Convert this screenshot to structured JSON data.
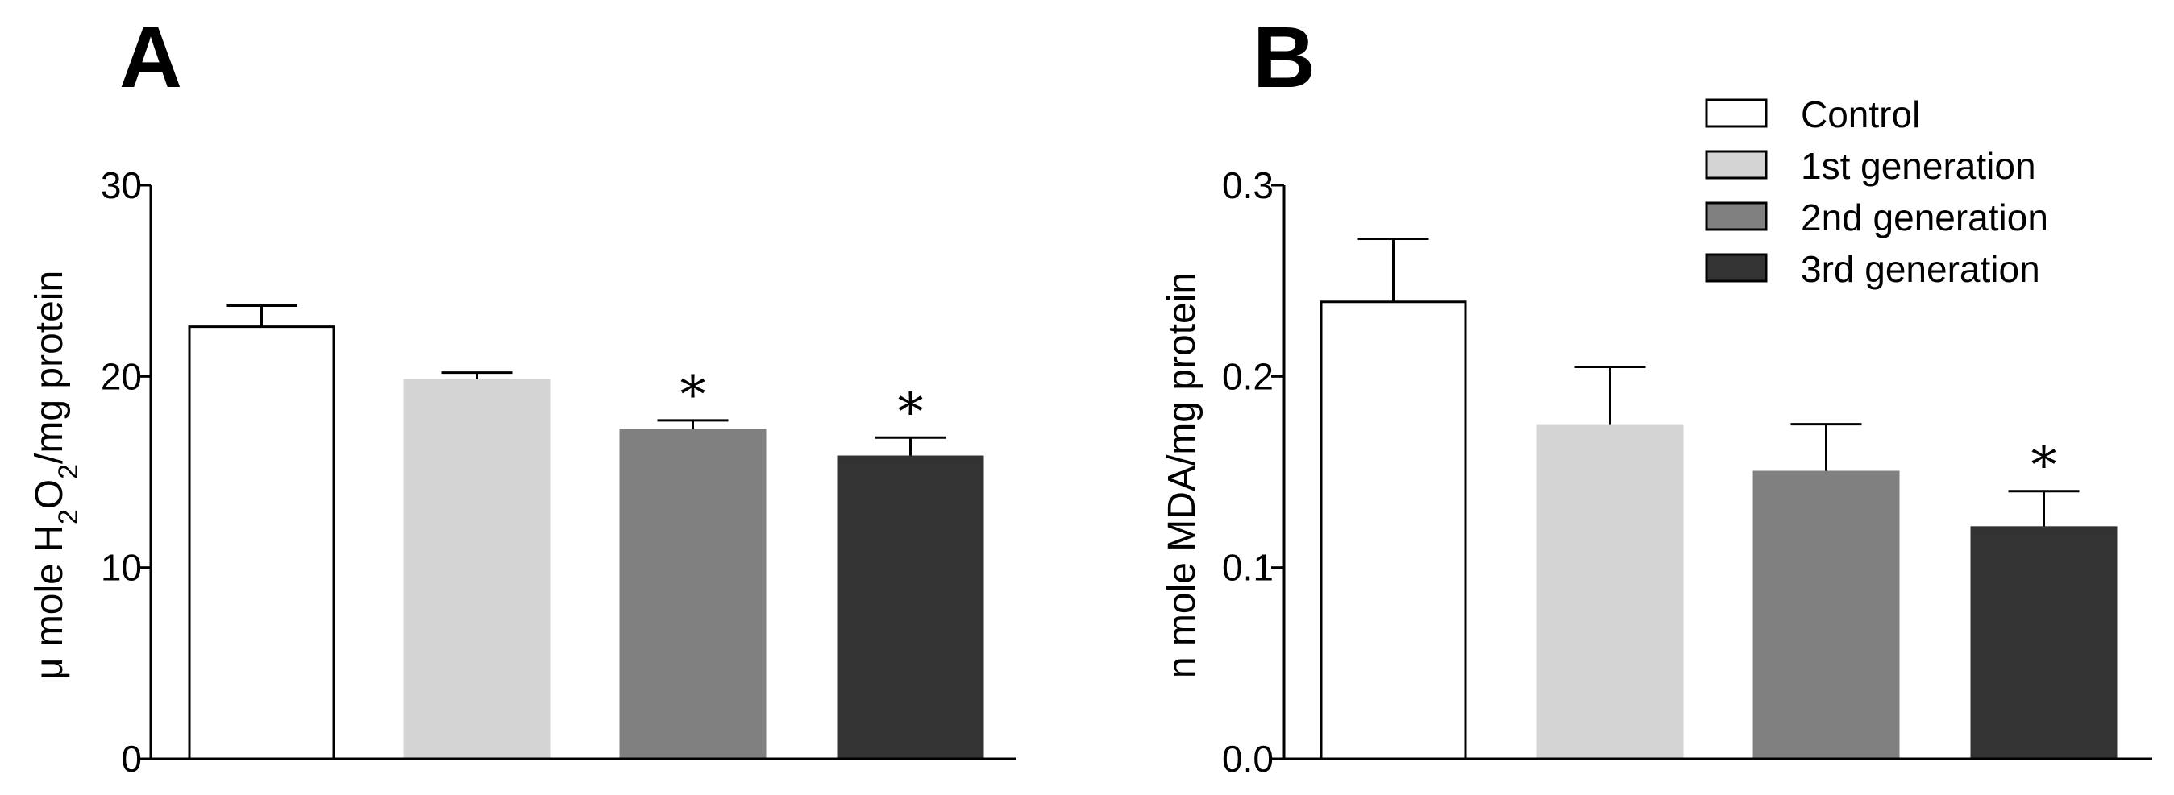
{
  "legend": [
    {
      "label": "Control",
      "color": "#ffffff"
    },
    {
      "label": "1st generation",
      "color": "#d4d4d4"
    },
    {
      "label": "2nd generation",
      "color": "#808080"
    },
    {
      "label": "3rd generation",
      "color": "#333333"
    }
  ],
  "chart_data": [
    {
      "type": "bar",
      "panel": "A",
      "ylabel_parts": [
        "μ mole H",
        "2",
        "O",
        "2",
        "/mg protein"
      ],
      "ylim": [
        0,
        30
      ],
      "yticks": [
        "0",
        "10",
        "20",
        "30"
      ],
      "categories": [
        "Control",
        "1st generation",
        "2nd generation",
        "3rd generation"
      ],
      "values": [
        22.6,
        19.8,
        17.2,
        15.8
      ],
      "errors": [
        1.1,
        0.4,
        0.5,
        1.0
      ],
      "significance": [
        "",
        "",
        "*",
        "*"
      ]
    },
    {
      "type": "bar",
      "panel": "B",
      "ylabel_parts": [
        "n mole MDA/mg protein"
      ],
      "ylim": [
        0,
        0.3
      ],
      "yticks": [
        "0.0",
        "0.1",
        "0.2",
        "0.3"
      ],
      "categories": [
        "Control",
        "1st generation",
        "2nd generation",
        "3rd generation"
      ],
      "values": [
        0.239,
        0.174,
        0.15,
        0.121
      ],
      "errors": [
        0.033,
        0.031,
        0.025,
        0.019
      ],
      "significance": [
        "",
        "",
        "",
        "*"
      ]
    }
  ]
}
